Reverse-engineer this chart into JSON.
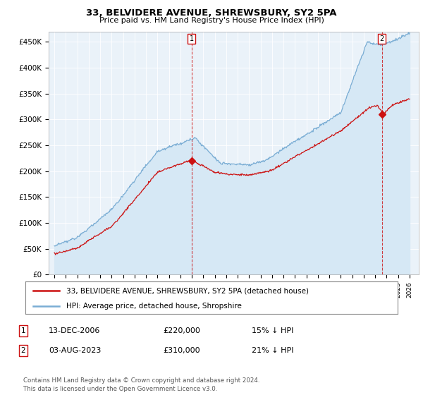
{
  "title": "33, BELVIDERE AVENUE, SHREWSBURY, SY2 5PA",
  "subtitle": "Price paid vs. HM Land Registry's House Price Index (HPI)",
  "ylabel_ticks": [
    "£0",
    "£50K",
    "£100K",
    "£150K",
    "£200K",
    "£250K",
    "£300K",
    "£350K",
    "£400K",
    "£450K"
  ],
  "ytick_values": [
    0,
    50000,
    100000,
    150000,
    200000,
    250000,
    300000,
    350000,
    400000,
    450000
  ],
  "ylim": [
    0,
    470000
  ],
  "hpi_color": "#7aadd4",
  "hpi_fill_color": "#d6e8f5",
  "price_color": "#cc1111",
  "marker1_year": 2006.96,
  "marker1_price": 220000,
  "marker2_year": 2023.58,
  "marker2_price": 310000,
  "legend_line1": "33, BELVIDERE AVENUE, SHREWSBURY, SY2 5PA (detached house)",
  "legend_line2": "HPI: Average price, detached house, Shropshire",
  "annot1_label": "1",
  "annot1_date": "13-DEC-2006",
  "annot1_price": "£220,000",
  "annot1_hpi": "15% ↓ HPI",
  "annot2_label": "2",
  "annot2_date": "03-AUG-2023",
  "annot2_price": "£310,000",
  "annot2_hpi": "21% ↓ HPI",
  "footer": "Contains HM Land Registry data © Crown copyright and database right 2024.\nThis data is licensed under the Open Government Licence v3.0.",
  "background_color": "#ffffff",
  "plot_bg_color": "#eaf2f9",
  "grid_color": "#ffffff"
}
